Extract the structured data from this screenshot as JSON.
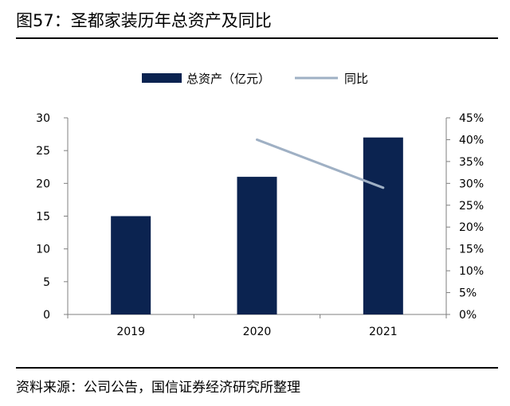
{
  "figure": {
    "title": "图57：圣都家装历年总资产及同比",
    "source": "资料来源：公司公告，国信证券经济研究所整理"
  },
  "colors": {
    "bar": "#0b2350",
    "line": "#9fb0c4",
    "axis": "#7f7f7f"
  },
  "chart_data": {
    "type": "bar",
    "categories": [
      "2019",
      "2020",
      "2021"
    ],
    "series": [
      {
        "name": "总资产（亿元）",
        "type": "bar",
        "axis": "left",
        "values": [
          15,
          21,
          27
        ]
      },
      {
        "name": "同比",
        "type": "line",
        "axis": "right",
        "values": [
          null,
          40,
          29
        ]
      }
    ],
    "y_left": {
      "ylim": [
        0,
        30
      ],
      "ticks": [
        "0",
        "5",
        "10",
        "15",
        "20",
        "25",
        "30"
      ]
    },
    "y_right": {
      "ylim": [
        0,
        45
      ],
      "ticks": [
        "0%",
        "5%",
        "10%",
        "15%",
        "20%",
        "25%",
        "30%",
        "35%",
        "40%",
        "45%"
      ]
    },
    "grid": false,
    "legend_position": "top"
  }
}
